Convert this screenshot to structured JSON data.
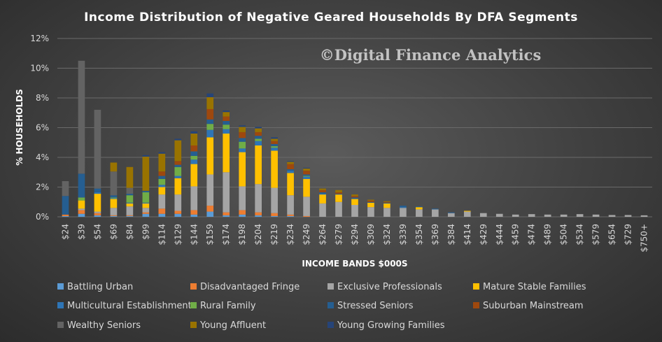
{
  "chart_data": {
    "type": "bar",
    "stacked": true,
    "title": "Income Distribution of Negative Geared Households By DFA Segments",
    "watermark": "©Digital Finance Analytics",
    "xlabel": "INCOME BANDS $000S",
    "ylabel": "% HOUSEHOLDS",
    "ylim": [
      0,
      12
    ],
    "yticks": [
      0,
      2,
      4,
      6,
      8,
      10,
      12
    ],
    "ytick_labels": [
      "0%",
      "2%",
      "4%",
      "6%",
      "8%",
      "10%",
      "12%"
    ],
    "grid": true,
    "legend_position": "bottom",
    "categories": [
      "$24",
      "$39",
      "$54",
      "$69",
      "$84",
      "$99",
      "$114",
      "$129",
      "$144",
      "$159",
      "$174",
      "$198",
      "$204",
      "$219",
      "$234",
      "$249",
      "$264",
      "$279",
      "$294",
      "$309",
      "$324",
      "$339",
      "$354",
      "$369",
      "$384",
      "$414",
      "$429",
      "$444",
      "$459",
      "$474",
      "$489",
      "$504",
      "$534",
      "$579",
      "$654",
      "$729",
      "$750+"
    ],
    "series": [
      {
        "name": "Battling Urban",
        "color": "#5b9bd5",
        "values": [
          0.05,
          0.2,
          0.1,
          0.05,
          0.05,
          0.2,
          0.2,
          0.2,
          0.15,
          0.35,
          0.1,
          0.15,
          0.1,
          0.05,
          0.05,
          0,
          0,
          0,
          0,
          0,
          0,
          0,
          0,
          0,
          0,
          0,
          0,
          0,
          0,
          0,
          0,
          0,
          0,
          0,
          0,
          0,
          0
        ]
      },
      {
        "name": "Disadvantaged Fringe",
        "color": "#ed7d31",
        "values": [
          0.1,
          0.25,
          0.15,
          0.05,
          0.05,
          0.1,
          0.35,
          0.2,
          0.3,
          0.4,
          0.2,
          0.3,
          0.2,
          0.2,
          0.1,
          0.05,
          0,
          0,
          0,
          0,
          0,
          0,
          0,
          0,
          0,
          0,
          0,
          0,
          0,
          0,
          0,
          0,
          0,
          0,
          0,
          0,
          0
        ]
      },
      {
        "name": "Exclusive Professionals",
        "color": "#a5a5a5",
        "values": [
          0,
          0.1,
          0.1,
          0.5,
          0.6,
          0.3,
          0.95,
          1.1,
          1.6,
          2.1,
          2.7,
          1.6,
          1.9,
          1.7,
          1.3,
          1.3,
          0.9,
          1.0,
          0.8,
          0.65,
          0.6,
          0.6,
          0.5,
          0.5,
          0.25,
          0.35,
          0.25,
          0.2,
          0.15,
          0.18,
          0.15,
          0.15,
          0.18,
          0.15,
          0.12,
          0.12,
          0.1
        ]
      },
      {
        "name": "Mature Stable Families",
        "color": "#ffc000",
        "values": [
          0,
          0.55,
          1.2,
          0.6,
          0.2,
          0.3,
          0.5,
          1.1,
          1.5,
          2.5,
          2.6,
          2.3,
          2.6,
          2.5,
          1.5,
          1.2,
          0.6,
          0.5,
          0.4,
          0.3,
          0.3,
          0,
          0.15,
          0,
          0,
          0.05,
          0,
          0,
          0,
          0,
          0,
          0,
          0,
          0,
          0,
          0,
          0
        ]
      },
      {
        "name": "Multicultural Establishment",
        "color": "#2e75b6",
        "values": [
          0,
          0,
          0.1,
          0.05,
          0.05,
          0.05,
          0.15,
          0.15,
          0.3,
          0.5,
          0.3,
          0.25,
          0.3,
          0.2,
          0.15,
          0.15,
          0.05,
          0,
          0,
          0,
          0,
          0.05,
          0,
          0,
          0,
          0,
          0,
          0,
          0,
          0,
          0,
          0,
          0,
          0,
          0,
          0,
          0
        ]
      },
      {
        "name": "Rural Family",
        "color": "#70ad47",
        "values": [
          0,
          0.2,
          0,
          0.05,
          0.5,
          0.7,
          0.4,
          0.6,
          0.25,
          0.4,
          0.3,
          0.45,
          0.15,
          0.1,
          0,
          0.05,
          0,
          0,
          0,
          0,
          0,
          0,
          0,
          0,
          0,
          0,
          0,
          0,
          0,
          0,
          0,
          0,
          0,
          0,
          0,
          0,
          0
        ]
      },
      {
        "name": "Stressed Seniors",
        "color": "#255e91",
        "values": [
          1.25,
          1.6,
          0.25,
          0.15,
          0.1,
          0.1,
          0.2,
          0.15,
          0.3,
          0.3,
          0.25,
          0.25,
          0.2,
          0.15,
          0.1,
          0.1,
          0.1,
          0.05,
          0.1,
          0.05,
          0.05,
          0.1,
          0.05,
          0.05,
          0.05,
          0,
          0,
          0,
          0,
          0,
          0,
          0,
          0,
          0,
          0,
          0,
          0
        ]
      },
      {
        "name": "Suburban Mainstream",
        "color": "#9e480e",
        "values": [
          0,
          0,
          0,
          0,
          0,
          0,
          0.3,
          0.25,
          0.4,
          0.7,
          0.3,
          0.4,
          0.25,
          0.2,
          0.35,
          0.25,
          0.15,
          0.1,
          0.1,
          0.1,
          0.05,
          0,
          0,
          0,
          0,
          0,
          0,
          0,
          0,
          0,
          0,
          0,
          0,
          0,
          0,
          0,
          0
        ]
      },
      {
        "name": "Wealthy Seniors",
        "color": "#636363",
        "values": [
          1.0,
          7.6,
          5.3,
          1.6,
          0.4,
          0,
          0,
          0,
          0,
          0,
          0,
          0,
          0,
          0,
          0,
          0,
          0,
          0,
          0,
          0,
          0,
          0,
          0,
          0,
          0,
          0,
          0,
          0,
          0,
          0,
          0,
          0,
          0,
          0,
          0,
          0,
          0
        ]
      },
      {
        "name": "Young Affluent",
        "color": "#997300",
        "values": [
          0,
          0,
          0,
          0.6,
          1.4,
          2.3,
          1.2,
          1.4,
          0.8,
          0.8,
          0.3,
          0.35,
          0.25,
          0.15,
          0.15,
          0.15,
          0.1,
          0.15,
          0.1,
          0.05,
          0.05,
          0,
          0,
          0,
          0,
          0,
          0,
          0,
          0,
          0,
          0,
          0,
          0,
          0,
          0,
          0,
          0
        ]
      },
      {
        "name": "Young Growing Families",
        "color": "#264478",
        "values": [
          0,
          0,
          0,
          0,
          0,
          0.1,
          0.1,
          0.1,
          0.15,
          0.25,
          0.1,
          0.1,
          0.1,
          0.1,
          0.05,
          0.05,
          0,
          0,
          0,
          0,
          0,
          0,
          0,
          0,
          0,
          0,
          0,
          0,
          0,
          0,
          0,
          0,
          0,
          0,
          0,
          0,
          0
        ]
      }
    ]
  }
}
